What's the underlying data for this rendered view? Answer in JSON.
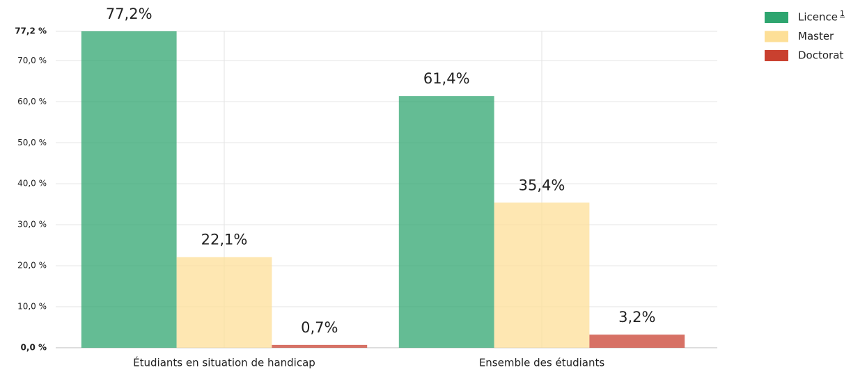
{
  "chart_data": {
    "type": "bar",
    "categories": [
      "Étudiants en situation de handicap",
      "Ensemble des étudiants"
    ],
    "series": [
      {
        "name": "Licence",
        "color": "#2ea56f",
        "values": [
          77.2,
          61.4
        ],
        "value_labels": [
          "77,2%",
          "61,4%"
        ]
      },
      {
        "name": "Master",
        "color": "#fddf97",
        "values": [
          22.1,
          35.4
        ],
        "value_labels": [
          "22,1%",
          "35,4%"
        ]
      },
      {
        "name": "Doctorat",
        "color": "#c9402f",
        "values": [
          0.7,
          3.2
        ],
        "value_labels": [
          "0,7%",
          "3,2%"
        ]
      }
    ],
    "legend_footnote": "1",
    "ylim": [
      0,
      77.2
    ],
    "yticks": [
      {
        "value": 0,
        "label": "0,0 %"
      },
      {
        "value": 10,
        "label": "10,0 %"
      },
      {
        "value": 20,
        "label": "20,0 %"
      },
      {
        "value": 30,
        "label": "30,0 %"
      },
      {
        "value": 40,
        "label": "40,0 %"
      },
      {
        "value": 50,
        "label": "50,0 %"
      },
      {
        "value": 60,
        "label": "60,0 %"
      },
      {
        "value": 70,
        "label": "70,0 %"
      },
      {
        "value": 77.2,
        "label": "77,2 %"
      }
    ],
    "grid": true,
    "legend": "top-right"
  }
}
